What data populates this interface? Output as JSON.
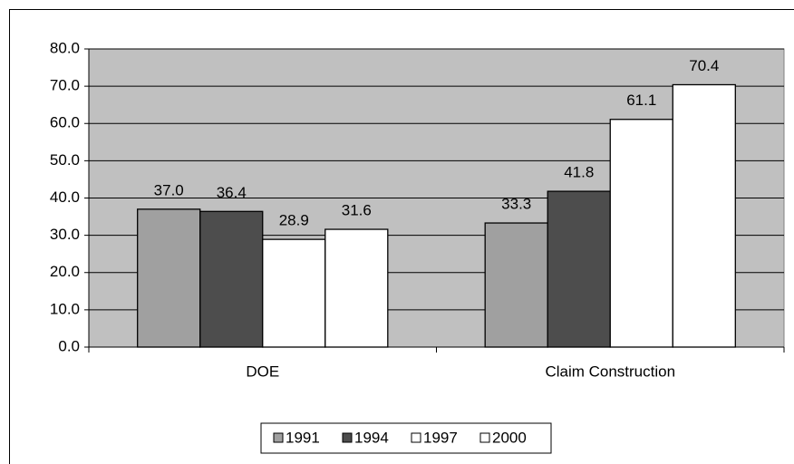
{
  "chart_data": {
    "type": "bar",
    "categories": [
      "DOE",
      "Claim Construction"
    ],
    "series": [
      {
        "name": "1991",
        "color": "#a0a0a0",
        "values": [
          37.0,
          33.3
        ],
        "value_labels": [
          "37.0",
          "33.3"
        ]
      },
      {
        "name": "1994",
        "color": "#4d4d4d",
        "values": [
          36.4,
          41.8
        ],
        "value_labels": [
          "36.4",
          "41.8"
        ]
      },
      {
        "name": "1997",
        "color": "#ffffff",
        "values": [
          28.9,
          61.1
        ],
        "value_labels": [
          "28.9",
          "61.1"
        ]
      },
      {
        "name": "2000",
        "color": "#ffffff",
        "values": [
          31.6,
          70.4
        ],
        "value_labels": [
          "31.6",
          "70.4"
        ]
      }
    ],
    "ylim": [
      0,
      80
    ],
    "yticks": [
      {
        "value": 0,
        "label": "0.0"
      },
      {
        "value": 10,
        "label": "10.0"
      },
      {
        "value": 20,
        "label": "20.0"
      },
      {
        "value": 30,
        "label": "30.0"
      },
      {
        "value": 40,
        "label": "40.0"
      },
      {
        "value": 50,
        "label": "50.0"
      },
      {
        "value": 60,
        "label": "60.0"
      },
      {
        "value": 70,
        "label": "70.0"
      },
      {
        "value": 80,
        "label": "80.0"
      }
    ],
    "grid": true,
    "plot_background": "#c0c0c0",
    "legend": "bottom"
  }
}
